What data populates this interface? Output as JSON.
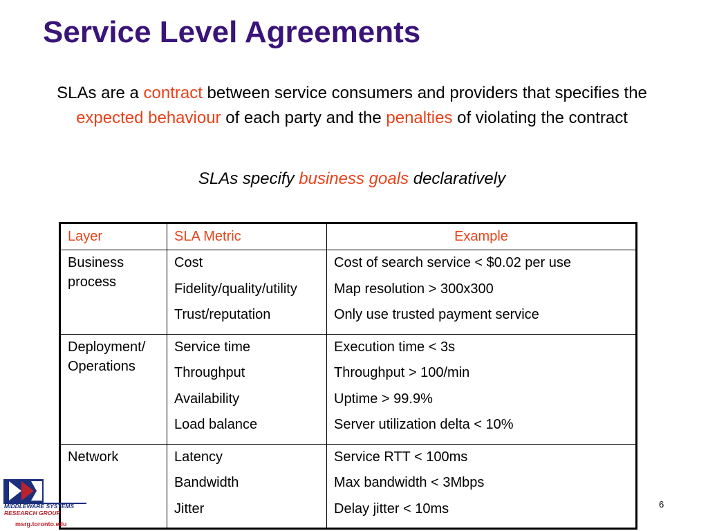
{
  "slide": {
    "title": "Service Level Agreements",
    "intro": {
      "p1": "SLAs are a ",
      "h1": "contract",
      "p2": " between service consumers and providers that specifies the ",
      "h2": "expected behaviour",
      "p3": " of each party and the ",
      "h3": "penalties",
      "p4": " of violating the contract"
    },
    "tagline": {
      "p1": "SLAs specify ",
      "h1": "business goals",
      "p2": " declaratively"
    },
    "page_number": "6"
  },
  "table": {
    "headers": [
      "Layer",
      "SLA Metric",
      "Example"
    ],
    "groups": [
      {
        "layer": "Business process",
        "rows": [
          {
            "metric": "Cost",
            "example": "Cost of search service < $0.02 per use"
          },
          {
            "metric": "Fidelity/quality/utility",
            "example": "Map resolution > 300x300"
          },
          {
            "metric": "Trust/reputation",
            "example": "Only use trusted payment service"
          }
        ]
      },
      {
        "layer": "Deployment/ Operations",
        "rows": [
          {
            "metric": "Service time",
            "example": "Execution time < 3s"
          },
          {
            "metric": "Throughput",
            "example": "Throughput > 100/min"
          },
          {
            "metric": "Availability",
            "example": "Uptime > 99.9%"
          },
          {
            "metric": "Load balance",
            "example": "Server utilization delta < 10%"
          }
        ]
      },
      {
        "layer": "Network",
        "rows": [
          {
            "metric": "Latency",
            "example": "Service RTT < 100ms"
          },
          {
            "metric": "Bandwidth",
            "example": "Max bandwidth < 3Mbps"
          },
          {
            "metric": "Jitter",
            "example": "Delay jitter < 10ms"
          }
        ]
      }
    ]
  },
  "logo": {
    "line1": "MIDDLEWARE SYSTEMS",
    "line2": "RESEARCH GROUP",
    "url": "msrg.toronto.edu"
  },
  "colors": {
    "title": "#3a1478",
    "highlight": "#e8421a",
    "logo_blue": "#1c2f7c",
    "logo_red": "#b8232f"
  }
}
